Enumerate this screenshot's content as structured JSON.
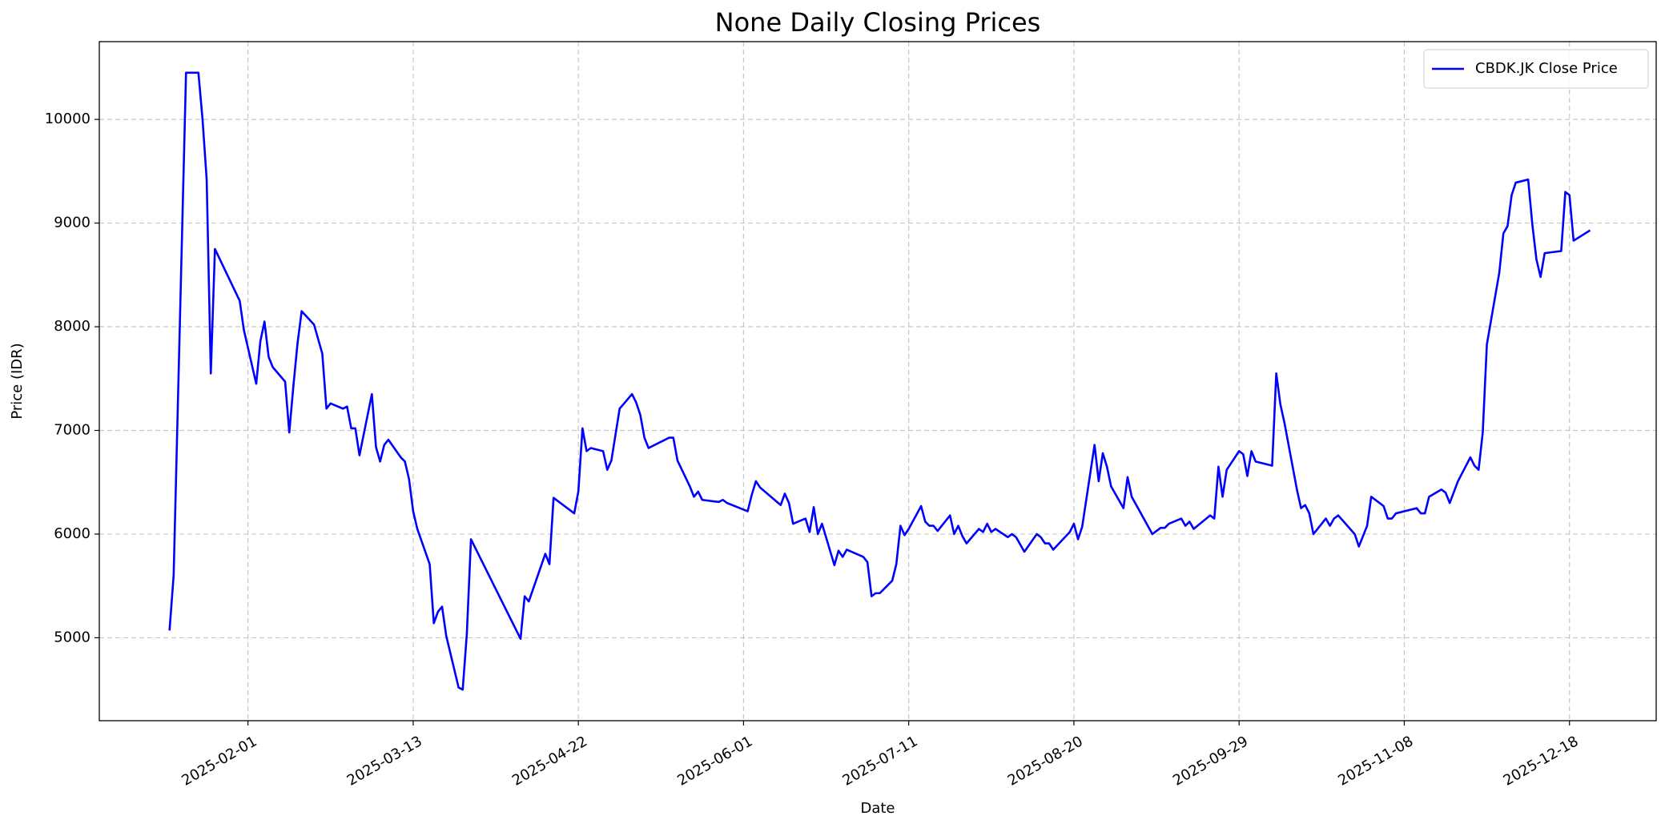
{
  "chart_data": {
    "type": "line",
    "title": "None Daily Closing Prices",
    "x_label": "Date",
    "y_label": "Price (IDR)",
    "x": [
      "2025-01-13",
      "2025-01-14",
      "2025-01-17",
      "2025-01-20",
      "2025-01-21",
      "2025-01-22",
      "2025-01-23",
      "2025-01-24",
      "2025-01-30",
      "2025-01-31",
      "2025-02-03",
      "2025-02-04",
      "2025-02-05",
      "2025-02-06",
      "2025-02-07",
      "2025-02-10",
      "2025-02-11",
      "2025-02-12",
      "2025-02-13",
      "2025-02-14",
      "2025-02-17",
      "2025-02-18",
      "2025-02-19",
      "2025-02-20",
      "2025-02-21",
      "2025-02-24",
      "2025-02-25",
      "2025-02-26",
      "2025-02-27",
      "2025-02-28",
      "2025-03-03",
      "2025-03-04",
      "2025-03-05",
      "2025-03-06",
      "2025-03-07",
      "2025-03-10",
      "2025-03-11",
      "2025-03-12",
      "2025-03-13",
      "2025-03-14",
      "2025-03-17",
      "2025-03-18",
      "2025-03-19",
      "2025-03-20",
      "2025-03-21",
      "2025-03-24",
      "2025-03-25",
      "2025-03-26",
      "2025-03-27",
      "2025-04-08",
      "2025-04-09",
      "2025-04-10",
      "2025-04-14",
      "2025-04-15",
      "2025-04-16",
      "2025-04-17",
      "2025-04-21",
      "2025-04-22",
      "2025-04-23",
      "2025-04-24",
      "2025-04-25",
      "2025-04-28",
      "2025-04-29",
      "2025-04-30",
      "2025-05-02",
      "2025-05-05",
      "2025-05-06",
      "2025-05-07",
      "2025-05-08",
      "2025-05-09",
      "2025-05-14",
      "2025-05-15",
      "2025-05-16",
      "2025-05-19",
      "2025-05-20",
      "2025-05-21",
      "2025-05-22",
      "2025-05-26",
      "2025-05-27",
      "2025-05-28",
      "2025-06-02",
      "2025-06-03",
      "2025-06-04",
      "2025-06-05",
      "2025-06-10",
      "2025-06-11",
      "2025-06-12",
      "2025-06-13",
      "2025-06-16",
      "2025-06-17",
      "2025-06-18",
      "2025-06-19",
      "2025-06-20",
      "2025-06-23",
      "2025-06-24",
      "2025-06-25",
      "2025-06-26",
      "2025-06-30",
      "2025-07-01",
      "2025-07-02",
      "2025-07-03",
      "2025-07-04",
      "2025-07-07",
      "2025-07-08",
      "2025-07-09",
      "2025-07-10",
      "2025-07-11",
      "2025-07-14",
      "2025-07-15",
      "2025-07-16",
      "2025-07-17",
      "2025-07-18",
      "2025-07-21",
      "2025-07-22",
      "2025-07-23",
      "2025-07-24",
      "2025-07-25",
      "2025-07-28",
      "2025-07-29",
      "2025-07-30",
      "2025-07-31",
      "2025-08-01",
      "2025-08-04",
      "2025-08-05",
      "2025-08-06",
      "2025-08-08",
      "2025-08-11",
      "2025-08-12",
      "2025-08-13",
      "2025-08-14",
      "2025-08-15",
      "2025-08-19",
      "2025-08-20",
      "2025-08-21",
      "2025-08-22",
      "2025-08-25",
      "2025-08-26",
      "2025-08-27",
      "2025-08-28",
      "2025-08-29",
      "2025-09-01",
      "2025-09-02",
      "2025-09-03",
      "2025-09-08",
      "2025-09-10",
      "2025-09-11",
      "2025-09-12",
      "2025-09-15",
      "2025-09-16",
      "2025-09-17",
      "2025-09-18",
      "2025-09-22",
      "2025-09-23",
      "2025-09-24",
      "2025-09-25",
      "2025-09-26",
      "2025-09-29",
      "2025-09-30",
      "2025-10-01",
      "2025-10-02",
      "2025-10-03",
      "2025-10-07",
      "2025-10-08",
      "2025-10-09",
      "2025-10-10",
      "2025-10-13",
      "2025-10-14",
      "2025-10-15",
      "2025-10-16",
      "2025-10-17",
      "2025-10-20",
      "2025-10-21",
      "2025-10-22",
      "2025-10-23",
      "2025-10-27",
      "2025-10-28",
      "2025-10-30",
      "2025-10-31",
      "2025-11-03",
      "2025-11-04",
      "2025-11-05",
      "2025-11-06",
      "2025-11-11",
      "2025-11-12",
      "2025-11-13",
      "2025-11-14",
      "2025-11-17",
      "2025-11-18",
      "2025-11-19",
      "2025-11-21",
      "2025-11-24",
      "2025-11-25",
      "2025-11-26",
      "2025-11-27",
      "2025-11-28",
      "2025-12-01",
      "2025-12-02",
      "2025-12-03",
      "2025-12-04",
      "2025-12-05",
      "2025-12-08",
      "2025-12-09",
      "2025-12-10",
      "2025-12-11",
      "2025-12-12",
      "2025-12-16",
      "2025-12-17",
      "2025-12-18",
      "2025-12-19",
      "2025-12-23"
    ],
    "series": [
      {
        "name": "CBDK.JK Close Price",
        "color": "#0000ff",
        "values": [
          5070,
          5600,
          10450,
          10450,
          10000,
          9420,
          7550,
          8750,
          8250,
          7970,
          7450,
          7860,
          8050,
          7710,
          7610,
          7470,
          6980,
          7430,
          7840,
          8150,
          8020,
          7880,
          7740,
          7210,
          7260,
          7210,
          7230,
          7020,
          7020,
          6760,
          7350,
          6840,
          6700,
          6860,
          6910,
          6740,
          6700,
          6530,
          6220,
          6050,
          5710,
          5140,
          5250,
          5300,
          5020,
          4520,
          4500,
          5040,
          5950,
          4990,
          5400,
          5350,
          5810,
          5710,
          6350,
          6320,
          6200,
          6410,
          7020,
          6800,
          6830,
          6800,
          6620,
          6710,
          7210,
          7350,
          7270,
          7150,
          6930,
          6830,
          6930,
          6930,
          6710,
          6460,
          6360,
          6410,
          6330,
          6310,
          6330,
          6300,
          6220,
          6380,
          6510,
          6450,
          6280,
          6390,
          6300,
          6100,
          6150,
          6020,
          6260,
          6000,
          6100,
          5700,
          5840,
          5780,
          5850,
          5780,
          5730,
          5400,
          5430,
          5430,
          5550,
          5710,
          6080,
          5990,
          6050,
          6270,
          6120,
          6080,
          6080,
          6030,
          6180,
          6000,
          6080,
          5980,
          5910,
          6050,
          6020,
          6100,
          6020,
          6050,
          5970,
          6000,
          5970,
          5830,
          6000,
          5970,
          5910,
          5910,
          5850,
          6020,
          6100,
          5950,
          6070,
          6860,
          6510,
          6780,
          6650,
          6460,
          6250,
          6550,
          6360,
          6000,
          6060,
          6060,
          6100,
          6150,
          6080,
          6120,
          6050,
          6180,
          6150,
          6650,
          6360,
          6620,
          6800,
          6770,
          6560,
          6800,
          6700,
          6660,
          7550,
          7250,
          7070,
          6430,
          6250,
          6280,
          6200,
          6000,
          6150,
          6080,
          6150,
          6180,
          6000,
          5880,
          6080,
          6360,
          6270,
          6150,
          6150,
          6200,
          6250,
          6200,
          6200,
          6360,
          6430,
          6400,
          6300,
          6510,
          6740,
          6660,
          6620,
          6980,
          7830,
          8520,
          8900,
          8970,
          9270,
          9390,
          9420,
          8990,
          8650,
          8480,
          8710,
          8730,
          9300,
          9270,
          8830,
          8930
        ]
      }
    ],
    "xlim": [
      "2024-12-27",
      "2026-01-08"
    ],
    "xticks": [
      "2025-02-01",
      "2025-03-13",
      "2025-04-22",
      "2025-06-01",
      "2025-07-11",
      "2025-08-20",
      "2025-09-29",
      "2025-11-08",
      "2025-12-18"
    ],
    "ylim": [
      4200,
      10750
    ],
    "yticks": [
      5000,
      6000,
      7000,
      8000,
      9000,
      10000
    ],
    "grid": true,
    "legend": "upper right"
  }
}
